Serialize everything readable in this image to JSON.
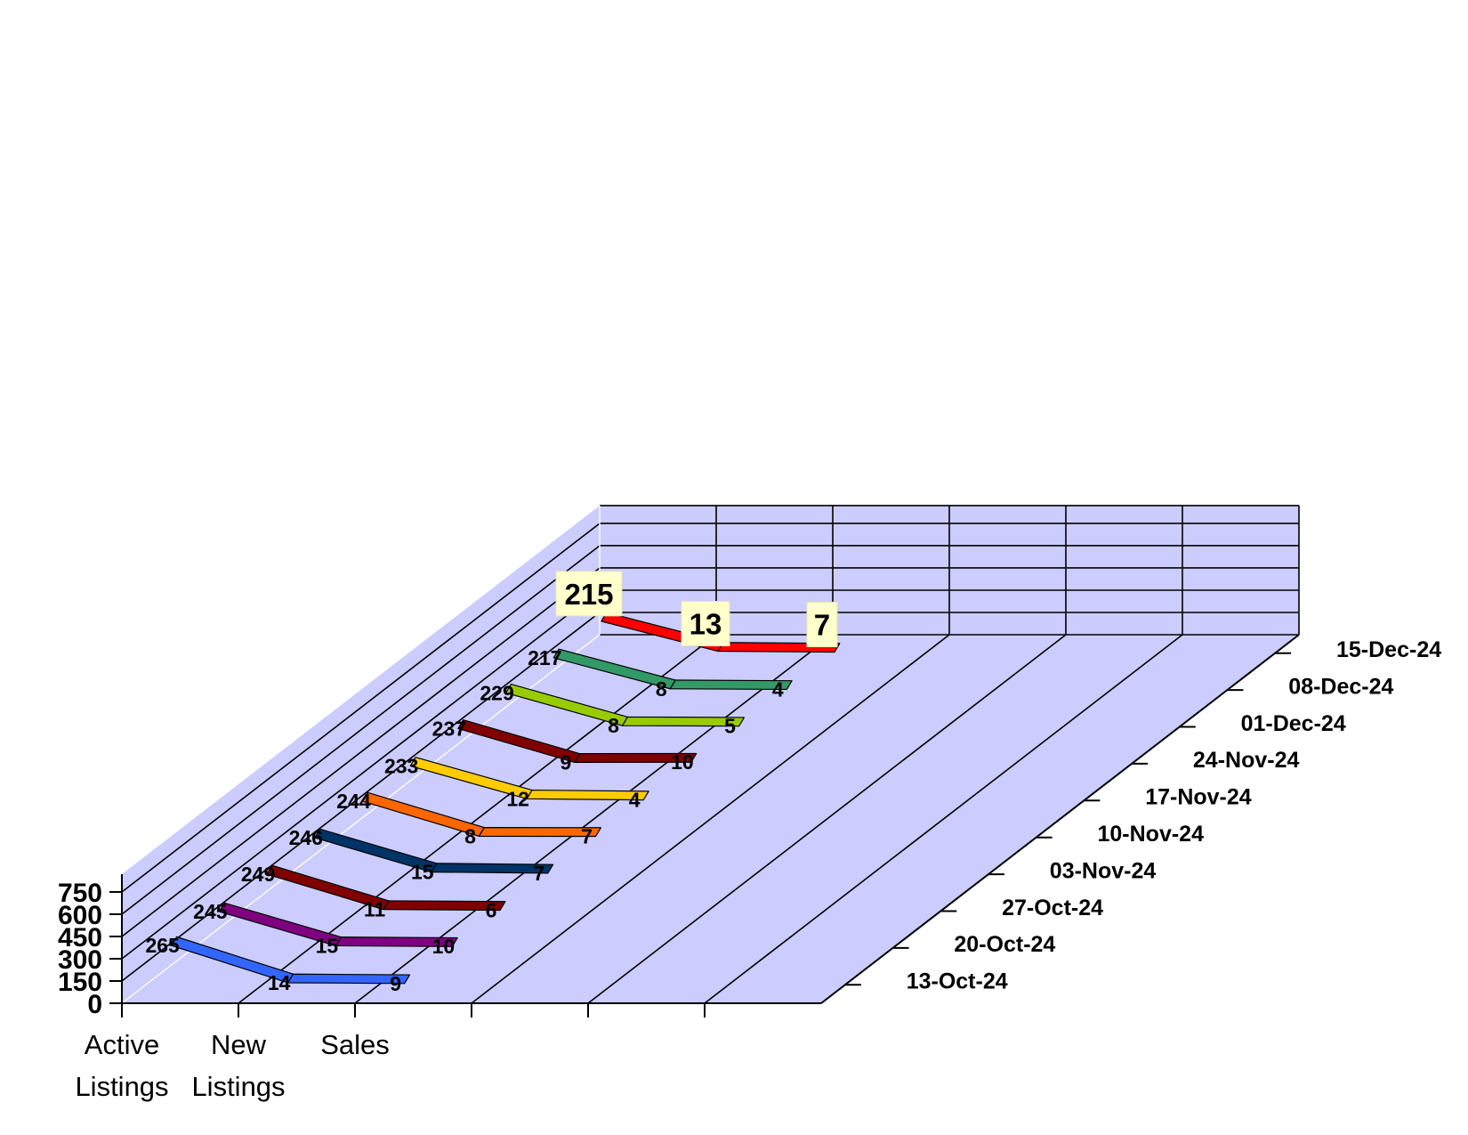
{
  "chart_data": {
    "type": "line",
    "title": "",
    "ylabel": "",
    "ylim": [
      0,
      750
    ],
    "yticks": [
      0,
      150,
      300,
      450,
      600,
      750
    ],
    "categories": [
      "Active\nListings",
      "New\nListings",
      "Sales"
    ],
    "series": [
      {
        "name": "13-Oct-24",
        "values": [
          265,
          14,
          9
        ],
        "color": "#3366ff"
      },
      {
        "name": "20-Oct-24",
        "values": [
          245,
          15,
          10
        ],
        "color": "#800080"
      },
      {
        "name": "27-Oct-24",
        "values": [
          249,
          11,
          6
        ],
        "color": "#800000"
      },
      {
        "name": "03-Nov-24",
        "values": [
          246,
          15,
          7
        ],
        "color": "#003366"
      },
      {
        "name": "10-Nov-24",
        "values": [
          244,
          8,
          7
        ],
        "color": "#ff6600"
      },
      {
        "name": "17-Nov-24",
        "values": [
          233,
          12,
          4
        ],
        "color": "#ffcc00"
      },
      {
        "name": "24-Nov-24",
        "values": [
          237,
          9,
          10
        ],
        "color": "#800000"
      },
      {
        "name": "01-Dec-24",
        "values": [
          229,
          8,
          5
        ],
        "color": "#99cc00"
      },
      {
        "name": "08-Dec-24",
        "values": [
          217,
          8,
          4
        ],
        "color": "#339966"
      },
      {
        "name": "15-Dec-24",
        "values": [
          215,
          13,
          7
        ],
        "color": "#ff0000"
      }
    ],
    "highlight_series": "15-Dec-24",
    "grid": true,
    "wall_color": "#ccccff",
    "grid_color": "#000000"
  }
}
